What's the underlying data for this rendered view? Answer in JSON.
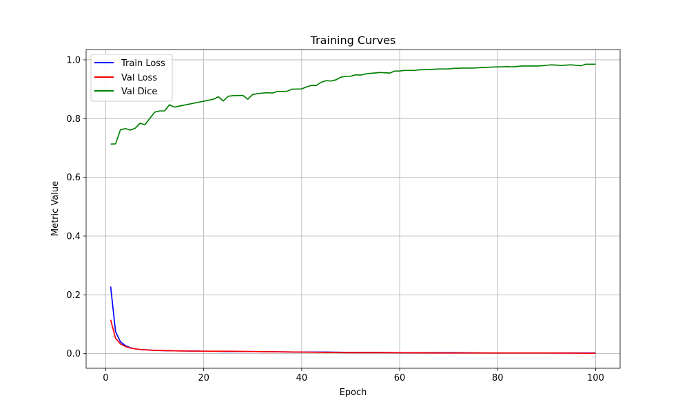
{
  "colors": {
    "train_loss": "#0000ff",
    "val_loss": "#ff0000",
    "val_dice": "#008000",
    "grid": "#b0b0b0"
  },
  "chart_data": {
    "type": "line",
    "title": "Training Curves",
    "xlabel": "Epoch",
    "ylabel": "Metric Value",
    "xlim": [
      -4,
      105
    ],
    "ylim": [
      -0.05,
      1.035
    ],
    "xticks": [
      0,
      20,
      40,
      60,
      80,
      100
    ],
    "yticks": [
      0.0,
      0.2,
      0.4,
      0.6,
      0.8,
      1.0
    ],
    "xtick_labels": [
      "0",
      "20",
      "40",
      "60",
      "80",
      "100"
    ],
    "ytick_labels": [
      "0.0",
      "0.2",
      "0.4",
      "0.6",
      "0.8",
      "1.0"
    ],
    "grid": true,
    "legend_position": "upper-left",
    "series": [
      {
        "name": "Train Loss",
        "color": "#0000ff",
        "x": [
          1,
          2,
          3,
          4,
          5,
          6,
          7,
          8,
          10,
          12,
          15,
          20,
          25,
          30,
          35,
          40,
          45,
          50,
          55,
          60,
          70,
          80,
          90,
          100
        ],
        "y": [
          0.228,
          0.075,
          0.04,
          0.027,
          0.02,
          0.016,
          0.014,
          0.013,
          0.011,
          0.01,
          0.009,
          0.008,
          0.007,
          0.007,
          0.006,
          0.005,
          0.005,
          0.004,
          0.004,
          0.003,
          0.003,
          0.002,
          0.002,
          0.002
        ]
      },
      {
        "name": "Val Loss",
        "color": "#ff0000",
        "x": [
          1,
          2,
          3,
          4,
          5,
          6,
          7,
          8,
          10,
          12,
          15,
          20,
          25,
          30,
          35,
          40,
          45,
          50,
          55,
          60,
          70,
          80,
          90,
          100
        ],
        "y": [
          0.115,
          0.052,
          0.033,
          0.024,
          0.019,
          0.016,
          0.014,
          0.013,
          0.011,
          0.01,
          0.009,
          0.008,
          0.008,
          0.007,
          0.006,
          0.005,
          0.004,
          0.003,
          0.003,
          0.003,
          0.002,
          0.002,
          0.002,
          0.001
        ]
      },
      {
        "name": "Val Dice",
        "color": "#008000",
        "x": [
          1,
          2,
          3,
          4,
          5,
          6,
          7,
          8,
          10,
          11,
          12,
          13,
          14,
          20,
          22,
          23,
          24,
          25,
          26,
          28,
          29,
          30,
          31,
          32,
          33,
          34,
          35,
          37,
          38,
          40,
          41,
          42,
          43,
          44,
          45,
          46,
          47,
          48,
          49,
          50,
          51,
          52,
          53,
          54,
          56,
          58,
          59,
          60,
          61,
          63,
          64,
          66,
          68,
          70,
          71,
          73,
          75,
          77,
          80,
          82,
          83,
          85,
          87,
          88,
          89,
          91,
          92,
          93,
          94,
          95,
          97,
          98,
          100
        ],
        "y": [
          0.713,
          0.714,
          0.762,
          0.766,
          0.761,
          0.767,
          0.784,
          0.779,
          0.822,
          0.826,
          0.826,
          0.847,
          0.839,
          0.859,
          0.866,
          0.874,
          0.86,
          0.876,
          0.878,
          0.879,
          0.866,
          0.882,
          0.885,
          0.887,
          0.888,
          0.887,
          0.892,
          0.893,
          0.9,
          0.901,
          0.908,
          0.913,
          0.913,
          0.924,
          0.929,
          0.928,
          0.932,
          0.941,
          0.944,
          0.944,
          0.949,
          0.948,
          0.952,
          0.954,
          0.957,
          0.955,
          0.962,
          0.962,
          0.964,
          0.964,
          0.966,
          0.967,
          0.969,
          0.969,
          0.971,
          0.972,
          0.972,
          0.974,
          0.976,
          0.977,
          0.976,
          0.979,
          0.979,
          0.979,
          0.98,
          0.983,
          0.982,
          0.981,
          0.982,
          0.983,
          0.98,
          0.985,
          0.985
        ]
      }
    ]
  }
}
